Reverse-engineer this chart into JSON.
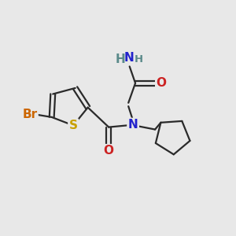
{
  "background_color": "#e8e8e8",
  "bond_color": "#2a2a2a",
  "bond_width": 1.6,
  "atom_colors": {
    "N": "#2222cc",
    "O": "#cc2222",
    "S": "#c8a000",
    "Br": "#cc6600",
    "H": "#5a8a8a"
  },
  "font_size_main": 11,
  "font_size_small": 9.5
}
